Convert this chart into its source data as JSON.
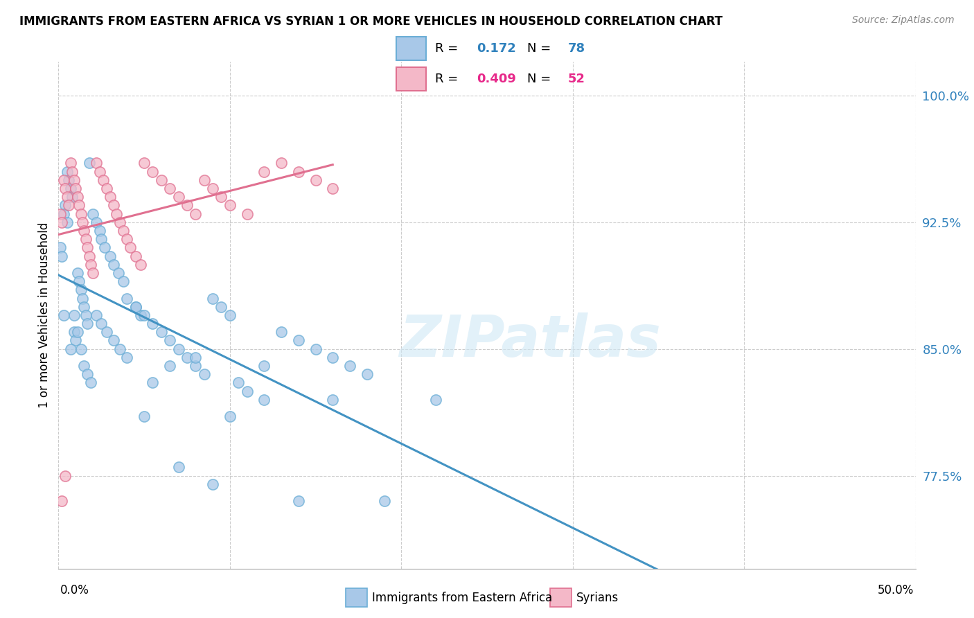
{
  "title": "IMMIGRANTS FROM EASTERN AFRICA VS SYRIAN 1 OR MORE VEHICLES IN HOUSEHOLD CORRELATION CHART",
  "source": "Source: ZipAtlas.com",
  "ylabel": "1 or more Vehicles in Household",
  "ytick_labels": [
    "77.5%",
    "85.0%",
    "92.5%",
    "100.0%"
  ],
  "ytick_values": [
    0.775,
    0.85,
    0.925,
    1.0
  ],
  "legend_label1": "Immigrants from Eastern Africa",
  "legend_label2": "Syrians",
  "legend_r1": "0.172",
  "legend_n1": "78",
  "legend_r2": "0.409",
  "legend_n2": "52",
  "color_blue": "#a8c8e8",
  "color_blue_edge": "#6baed6",
  "color_blue_line": "#4393c3",
  "color_blue_text": "#3182bd",
  "color_pink": "#f4b8c8",
  "color_pink_edge": "#e07090",
  "color_pink_line": "#e07090",
  "color_pink_text": "#e7298a",
  "blue_scatter_x": [
    0.001,
    0.002,
    0.003,
    0.004,
    0.005,
    0.006,
    0.007,
    0.008,
    0.009,
    0.01,
    0.011,
    0.012,
    0.013,
    0.014,
    0.015,
    0.016,
    0.017,
    0.018,
    0.02,
    0.022,
    0.024,
    0.025,
    0.027,
    0.03,
    0.032,
    0.035,
    0.038,
    0.04,
    0.045,
    0.048,
    0.05,
    0.055,
    0.06,
    0.065,
    0.07,
    0.075,
    0.08,
    0.085,
    0.09,
    0.095,
    0.1,
    0.105,
    0.11,
    0.12,
    0.13,
    0.14,
    0.15,
    0.16,
    0.17,
    0.18,
    0.003,
    0.005,
    0.007,
    0.009,
    0.011,
    0.013,
    0.015,
    0.017,
    0.019,
    0.022,
    0.025,
    0.028,
    0.032,
    0.036,
    0.04,
    0.045,
    0.05,
    0.055,
    0.065,
    0.07,
    0.08,
    0.09,
    0.1,
    0.12,
    0.14,
    0.16,
    0.19,
    0.22
  ],
  "blue_scatter_y": [
    0.91,
    0.905,
    0.87,
    0.935,
    0.955,
    0.95,
    0.945,
    0.94,
    0.86,
    0.855,
    0.895,
    0.89,
    0.885,
    0.88,
    0.875,
    0.87,
    0.865,
    0.96,
    0.93,
    0.925,
    0.92,
    0.915,
    0.91,
    0.905,
    0.9,
    0.895,
    0.89,
    0.88,
    0.875,
    0.87,
    0.87,
    0.865,
    0.86,
    0.855,
    0.85,
    0.845,
    0.84,
    0.835,
    0.88,
    0.875,
    0.87,
    0.83,
    0.825,
    0.82,
    0.86,
    0.855,
    0.85,
    0.845,
    0.84,
    0.835,
    0.93,
    0.925,
    0.85,
    0.87,
    0.86,
    0.85,
    0.84,
    0.835,
    0.83,
    0.87,
    0.865,
    0.86,
    0.855,
    0.85,
    0.845,
    0.875,
    0.81,
    0.83,
    0.84,
    0.78,
    0.845,
    0.77,
    0.81,
    0.84,
    0.76,
    0.82,
    0.76,
    0.82
  ],
  "pink_scatter_x": [
    0.001,
    0.002,
    0.003,
    0.004,
    0.005,
    0.006,
    0.007,
    0.008,
    0.009,
    0.01,
    0.011,
    0.012,
    0.013,
    0.014,
    0.015,
    0.016,
    0.017,
    0.018,
    0.019,
    0.02,
    0.022,
    0.024,
    0.026,
    0.028,
    0.03,
    0.032,
    0.034,
    0.036,
    0.038,
    0.04,
    0.042,
    0.045,
    0.048,
    0.05,
    0.055,
    0.06,
    0.065,
    0.07,
    0.075,
    0.08,
    0.085,
    0.09,
    0.095,
    0.1,
    0.11,
    0.12,
    0.13,
    0.14,
    0.15,
    0.16,
    0.002,
    0.004
  ],
  "pink_scatter_y": [
    0.93,
    0.925,
    0.95,
    0.945,
    0.94,
    0.935,
    0.96,
    0.955,
    0.95,
    0.945,
    0.94,
    0.935,
    0.93,
    0.925,
    0.92,
    0.915,
    0.91,
    0.905,
    0.9,
    0.895,
    0.96,
    0.955,
    0.95,
    0.945,
    0.94,
    0.935,
    0.93,
    0.925,
    0.92,
    0.915,
    0.91,
    0.905,
    0.9,
    0.96,
    0.955,
    0.95,
    0.945,
    0.94,
    0.935,
    0.93,
    0.95,
    0.945,
    0.94,
    0.935,
    0.93,
    0.955,
    0.96,
    0.955,
    0.95,
    0.945,
    0.76,
    0.775
  ],
  "xlim": [
    0.0,
    0.5
  ],
  "ylim": [
    0.72,
    1.02
  ],
  "xtick_positions": [
    0.0,
    0.1,
    0.2,
    0.3,
    0.4,
    0.5
  ],
  "grid_x": [
    0.0,
    0.1,
    0.2,
    0.3,
    0.4,
    0.5
  ]
}
